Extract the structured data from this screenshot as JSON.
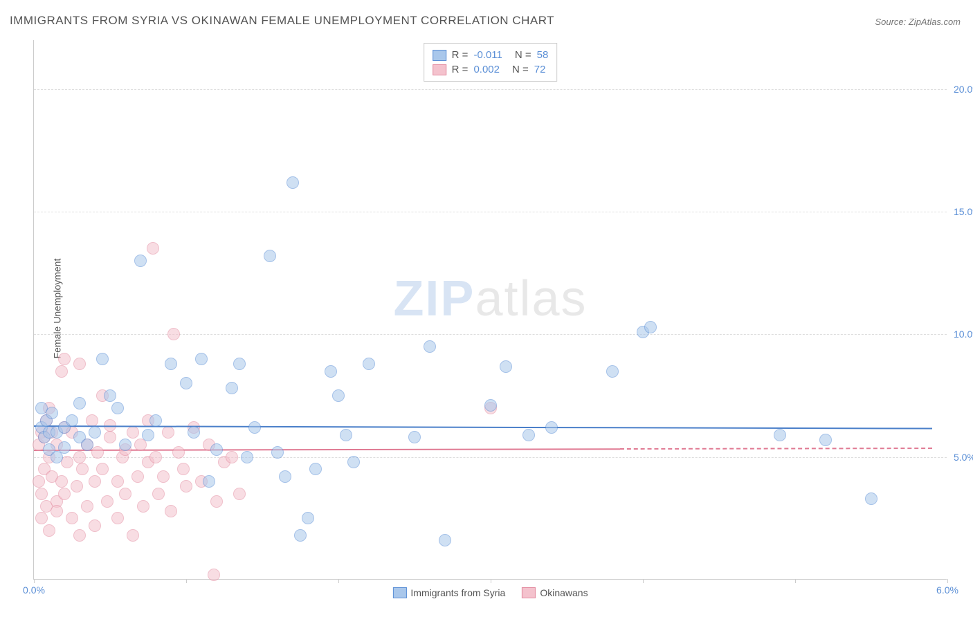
{
  "title": "IMMIGRANTS FROM SYRIA VS OKINAWAN FEMALE UNEMPLOYMENT CORRELATION CHART",
  "source": "Source: ZipAtlas.com",
  "watermark_zip": "ZIP",
  "watermark_atlas": "atlas",
  "y_axis_label": "Female Unemployment",
  "chart": {
    "type": "scatter",
    "background_color": "#ffffff",
    "grid_color": "#dddddd",
    "axis_color": "#cccccc",
    "label_color": "#555555",
    "tick_label_color": "#5b8fd6",
    "xlim": [
      0.0,
      6.0
    ],
    "ylim": [
      0.0,
      22.0
    ],
    "x_ticks": [
      0.0,
      1.0,
      2.0,
      3.0,
      4.0,
      5.0,
      6.0
    ],
    "x_tick_labels": {
      "0": "0.0%",
      "6": "6.0%"
    },
    "y_ticks": [
      5.0,
      10.0,
      15.0,
      20.0
    ],
    "y_tick_labels": [
      "5.0%",
      "10.0%",
      "15.0%",
      "20.0%"
    ],
    "marker_radius": 9,
    "marker_opacity": 0.55,
    "title_fontsize": 17,
    "tick_fontsize": 14,
    "series": [
      {
        "name": "Immigrants from Syria",
        "fill_color": "#a9c7eb",
        "stroke_color": "#5b8fd6",
        "R_label": "R =",
        "R_value": "-0.011",
        "N_label": "N =",
        "N_value": "58",
        "trend": {
          "y_start": 6.3,
          "y_end": 6.2,
          "x_start": 0.0,
          "x_end": 5.9,
          "color": "#4a7fc9",
          "width": 2
        },
        "points": [
          [
            0.05,
            6.2
          ],
          [
            0.05,
            7.0
          ],
          [
            0.07,
            5.8
          ],
          [
            0.08,
            6.5
          ],
          [
            0.1,
            6.0
          ],
          [
            0.1,
            5.3
          ],
          [
            0.12,
            6.8
          ],
          [
            0.15,
            6.0
          ],
          [
            0.15,
            5.0
          ],
          [
            0.2,
            6.2
          ],
          [
            0.2,
            5.4
          ],
          [
            0.25,
            6.5
          ],
          [
            0.3,
            5.8
          ],
          [
            0.3,
            7.2
          ],
          [
            0.35,
            5.5
          ],
          [
            0.4,
            6.0
          ],
          [
            0.45,
            9.0
          ],
          [
            0.5,
            7.5
          ],
          [
            0.55,
            7.0
          ],
          [
            0.6,
            5.5
          ],
          [
            0.7,
            13.0
          ],
          [
            0.75,
            5.9
          ],
          [
            0.8,
            6.5
          ],
          [
            0.9,
            8.8
          ],
          [
            1.0,
            8.0
          ],
          [
            1.05,
            6.0
          ],
          [
            1.1,
            9.0
          ],
          [
            1.15,
            4.0
          ],
          [
            1.2,
            5.3
          ],
          [
            1.3,
            7.8
          ],
          [
            1.35,
            8.8
          ],
          [
            1.4,
            5.0
          ],
          [
            1.45,
            6.2
          ],
          [
            1.55,
            13.2
          ],
          [
            1.6,
            5.2
          ],
          [
            1.65,
            4.2
          ],
          [
            1.7,
            16.2
          ],
          [
            1.75,
            1.8
          ],
          [
            1.8,
            2.5
          ],
          [
            1.85,
            4.5
          ],
          [
            1.95,
            8.5
          ],
          [
            2.0,
            7.5
          ],
          [
            2.05,
            5.9
          ],
          [
            2.1,
            4.8
          ],
          [
            2.2,
            8.8
          ],
          [
            2.5,
            5.8
          ],
          [
            2.6,
            9.5
          ],
          [
            2.7,
            1.6
          ],
          [
            3.0,
            7.1
          ],
          [
            3.1,
            8.7
          ],
          [
            3.25,
            5.9
          ],
          [
            3.4,
            6.2
          ],
          [
            3.8,
            8.5
          ],
          [
            4.0,
            10.1
          ],
          [
            4.05,
            10.3
          ],
          [
            4.9,
            5.9
          ],
          [
            5.2,
            5.7
          ],
          [
            5.5,
            3.3
          ]
        ]
      },
      {
        "name": "Okinawans",
        "fill_color": "#f4c2cd",
        "stroke_color": "#e38ba0",
        "R_label": "R =",
        "R_value": "0.002",
        "N_label": "N =",
        "N_value": "72",
        "trend": {
          "y_start": 5.3,
          "y_end": 5.35,
          "x_start": 0.0,
          "x_end": 3.85,
          "dashed_x_end": 5.9,
          "color": "#e07a93",
          "width": 2
        },
        "points": [
          [
            0.03,
            4.0
          ],
          [
            0.03,
            5.5
          ],
          [
            0.05,
            6.0
          ],
          [
            0.05,
            3.5
          ],
          [
            0.05,
            2.5
          ],
          [
            0.07,
            4.5
          ],
          [
            0.07,
            5.8
          ],
          [
            0.08,
            6.5
          ],
          [
            0.08,
            3.0
          ],
          [
            0.1,
            2.0
          ],
          [
            0.1,
            5.0
          ],
          [
            0.1,
            7.0
          ],
          [
            0.12,
            4.2
          ],
          [
            0.12,
            6.0
          ],
          [
            0.15,
            3.2
          ],
          [
            0.15,
            2.8
          ],
          [
            0.15,
            5.5
          ],
          [
            0.18,
            8.5
          ],
          [
            0.18,
            4.0
          ],
          [
            0.2,
            6.2
          ],
          [
            0.2,
            3.5
          ],
          [
            0.2,
            9.0
          ],
          [
            0.22,
            4.8
          ],
          [
            0.25,
            2.5
          ],
          [
            0.25,
            6.0
          ],
          [
            0.28,
            3.8
          ],
          [
            0.3,
            5.0
          ],
          [
            0.3,
            1.8
          ],
          [
            0.3,
            8.8
          ],
          [
            0.32,
            4.5
          ],
          [
            0.35,
            5.5
          ],
          [
            0.35,
            3.0
          ],
          [
            0.38,
            6.5
          ],
          [
            0.4,
            4.0
          ],
          [
            0.4,
            2.2
          ],
          [
            0.42,
            5.2
          ],
          [
            0.45,
            4.5
          ],
          [
            0.45,
            7.5
          ],
          [
            0.48,
            3.2
          ],
          [
            0.5,
            5.8
          ],
          [
            0.5,
            6.3
          ],
          [
            0.55,
            4.0
          ],
          [
            0.55,
            2.5
          ],
          [
            0.58,
            5.0
          ],
          [
            0.6,
            3.5
          ],
          [
            0.6,
            5.3
          ],
          [
            0.65,
            1.8
          ],
          [
            0.65,
            6.0
          ],
          [
            0.68,
            4.2
          ],
          [
            0.7,
            5.5
          ],
          [
            0.72,
            3.0
          ],
          [
            0.75,
            6.5
          ],
          [
            0.75,
            4.8
          ],
          [
            0.78,
            13.5
          ],
          [
            0.8,
            5.0
          ],
          [
            0.82,
            3.5
          ],
          [
            0.85,
            4.2
          ],
          [
            0.88,
            6.0
          ],
          [
            0.9,
            2.8
          ],
          [
            0.92,
            10.0
          ],
          [
            0.95,
            5.2
          ],
          [
            0.98,
            4.5
          ],
          [
            1.0,
            3.8
          ],
          [
            1.05,
            6.2
          ],
          [
            1.1,
            4.0
          ],
          [
            1.15,
            5.5
          ],
          [
            1.18,
            0.2
          ],
          [
            1.2,
            3.2
          ],
          [
            1.25,
            4.8
          ],
          [
            1.3,
            5.0
          ],
          [
            1.35,
            3.5
          ],
          [
            3.0,
            7.0
          ]
        ]
      }
    ]
  },
  "bottom_legend": {
    "items": [
      "Immigrants from Syria",
      "Okinawans"
    ]
  }
}
